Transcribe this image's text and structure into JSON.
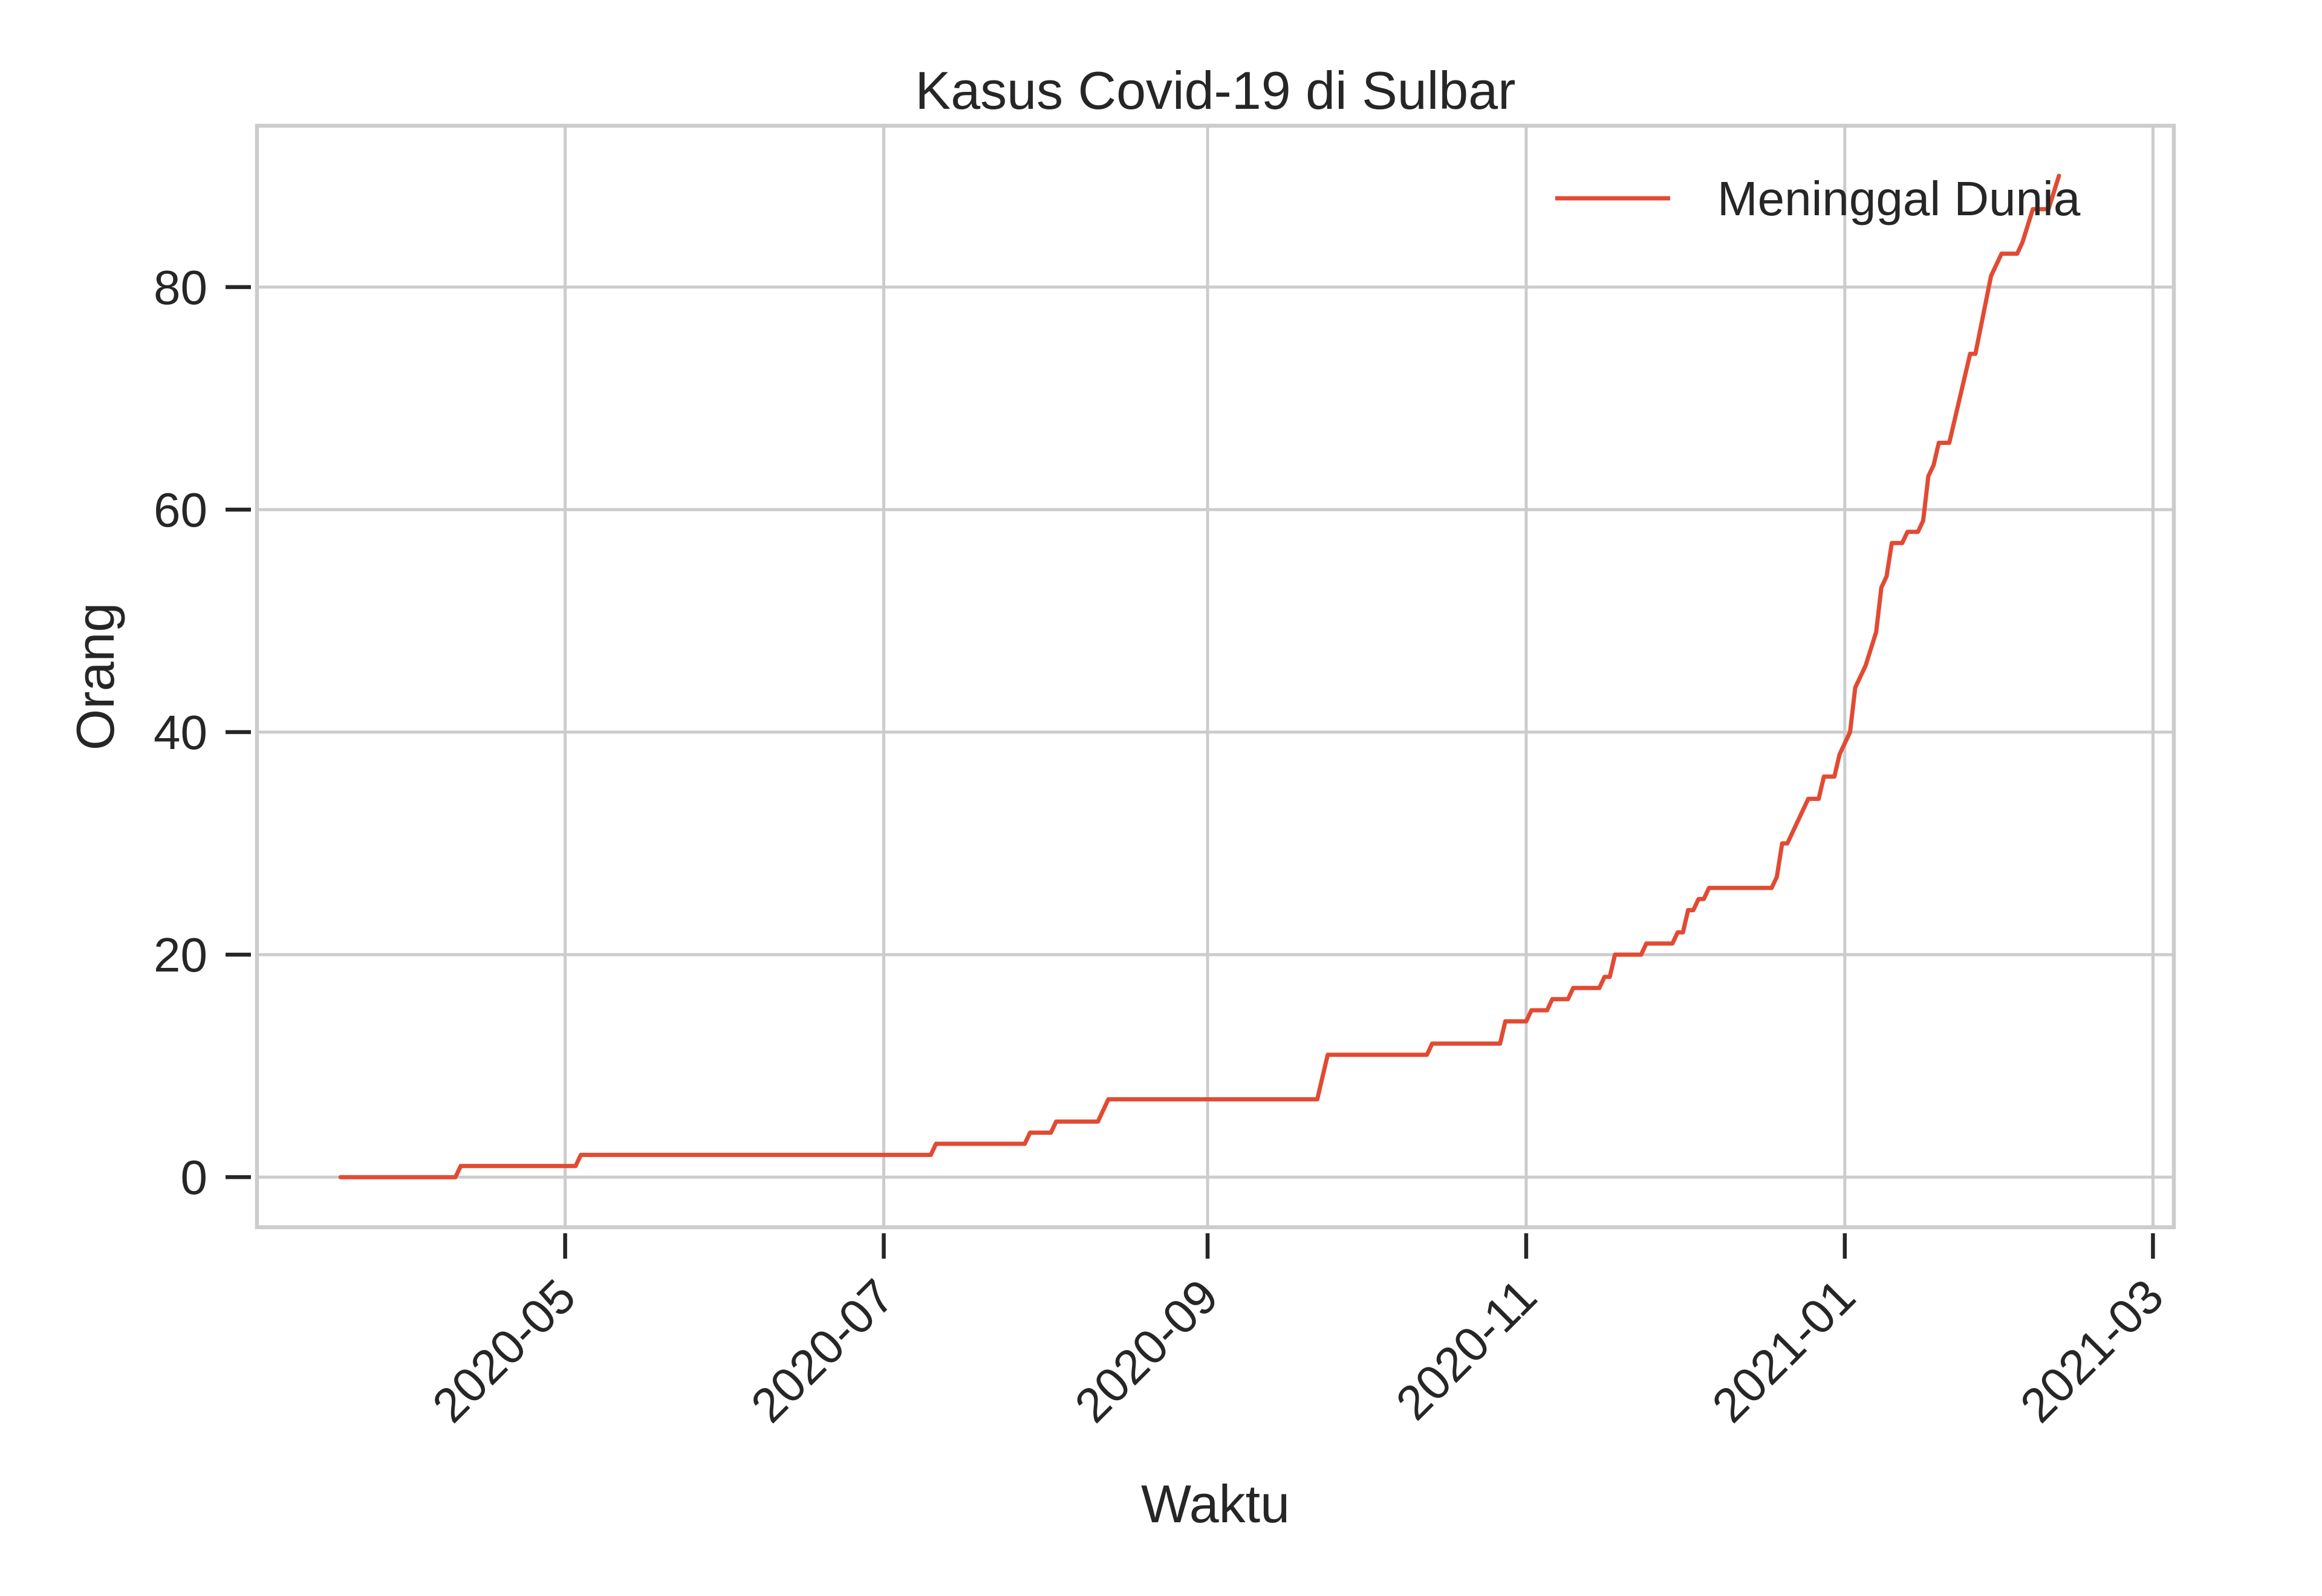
{
  "chart_data": {
    "type": "line",
    "title": "Kasus Covid-19 di Sulbar",
    "xlabel": "Waktu",
    "ylabel": "Orang",
    "x_ticks": [
      "2020-05",
      "2020-07",
      "2020-09",
      "2020-11",
      "2021-01",
      "2021-03"
    ],
    "y_ticks": [
      0,
      20,
      40,
      60,
      80
    ],
    "xlim": [
      "2020-03-03",
      "2021-03-05"
    ],
    "ylim": [
      -4.5,
      94.5
    ],
    "grid": true,
    "legend_position": "top-right",
    "series": [
      {
        "name": "Meninggal Dunia",
        "color": "#e24a33",
        "points": [
          [
            "2020-03-19",
            0
          ],
          [
            "2020-04-10",
            0
          ],
          [
            "2020-04-11",
            1
          ],
          [
            "2020-05-03",
            1
          ],
          [
            "2020-05-04",
            2
          ],
          [
            "2020-07-10",
            2
          ],
          [
            "2020-07-11",
            3
          ],
          [
            "2020-07-28",
            3
          ],
          [
            "2020-07-29",
            4
          ],
          [
            "2020-08-02",
            4
          ],
          [
            "2020-08-03",
            5
          ],
          [
            "2020-08-11",
            5
          ],
          [
            "2020-08-13",
            7
          ],
          [
            "2020-09-22",
            7
          ],
          [
            "2020-09-24",
            11
          ],
          [
            "2020-10-13",
            11
          ],
          [
            "2020-10-14",
            12
          ],
          [
            "2020-10-27",
            12
          ],
          [
            "2020-10-28",
            14
          ],
          [
            "2020-11-01",
            14
          ],
          [
            "2020-11-02",
            15
          ],
          [
            "2020-11-05",
            15
          ],
          [
            "2020-11-06",
            16
          ],
          [
            "2020-11-09",
            16
          ],
          [
            "2020-11-10",
            17
          ],
          [
            "2020-11-15",
            17
          ],
          [
            "2020-11-16",
            18
          ],
          [
            "2020-11-17",
            18
          ],
          [
            "2020-11-18",
            20
          ],
          [
            "2020-11-23",
            20
          ],
          [
            "2020-11-24",
            21
          ],
          [
            "2020-11-29",
            21
          ],
          [
            "2020-11-30",
            22
          ],
          [
            "2020-12-01",
            22
          ],
          [
            "2020-12-02",
            24
          ],
          [
            "2020-12-03",
            24
          ],
          [
            "2020-12-04",
            25
          ],
          [
            "2020-12-05",
            25
          ],
          [
            "2020-12-06",
            26
          ],
          [
            "2020-12-18",
            26
          ],
          [
            "2020-12-19",
            27
          ],
          [
            "2020-12-20",
            30
          ],
          [
            "2020-12-21",
            30
          ],
          [
            "2020-12-25",
            34
          ],
          [
            "2020-12-27",
            34
          ],
          [
            "2020-12-28",
            36
          ],
          [
            "2020-12-30",
            36
          ],
          [
            "2020-12-31",
            38
          ],
          [
            "2021-01-02",
            40
          ],
          [
            "2021-01-03",
            44
          ],
          [
            "2021-01-05",
            46
          ],
          [
            "2021-01-07",
            49
          ],
          [
            "2021-01-08",
            53
          ],
          [
            "2021-01-09",
            54
          ],
          [
            "2021-01-10",
            57
          ],
          [
            "2021-01-12",
            57
          ],
          [
            "2021-01-13",
            58
          ],
          [
            "2021-01-15",
            58
          ],
          [
            "2021-01-16",
            59
          ],
          [
            "2021-01-17",
            63
          ],
          [
            "2021-01-18",
            64
          ],
          [
            "2021-01-19",
            66
          ],
          [
            "2021-01-21",
            66
          ],
          [
            "2021-01-22",
            68
          ],
          [
            "2021-01-25",
            74
          ],
          [
            "2021-01-26",
            74
          ],
          [
            "2021-01-29",
            81
          ],
          [
            "2021-01-30",
            82
          ],
          [
            "2021-01-31",
            83
          ],
          [
            "2021-02-03",
            83
          ],
          [
            "2021-02-04",
            84
          ],
          [
            "2021-02-06",
            87
          ],
          [
            "2021-02-09",
            87
          ],
          [
            "2021-02-11",
            90
          ]
        ]
      }
    ]
  }
}
